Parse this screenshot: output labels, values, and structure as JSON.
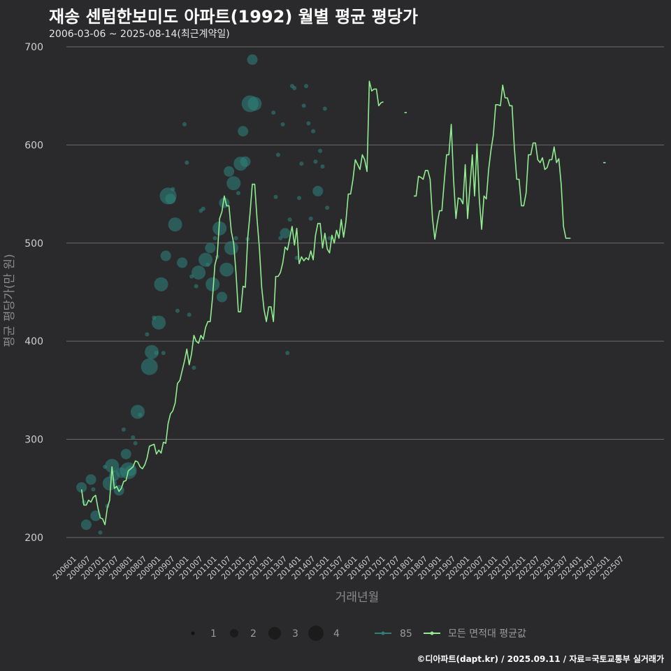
{
  "header": {
    "title": "재송 센텀한보미도 아파트(1992) 월별 평균 평당가",
    "subtitle": "2006-03-06 ~ 2025-08-14(최근계약일)"
  },
  "footer": {
    "credit": "©디아파트(dapt.kr) / 2025.09.11 / 자료=국토교통부 실거래가"
  },
  "colors": {
    "background": "#2a2a2c",
    "grid": "#6a6a6a",
    "line": "#90ee90",
    "points": "#2f7f78"
  },
  "legend": {
    "size_labels": [
      "1",
      "2",
      "3",
      "4"
    ],
    "series_85": "85",
    "series_all": "모든 면적대 평균값"
  },
  "chart_data": {
    "type": "line",
    "title": "재송 센텀한보미도 아파트(1992) 월별 평균 평당가",
    "xlabel": "거래년월",
    "ylabel": "평균 평당가(만 원)",
    "ylim": [
      185,
      705
    ],
    "yticks": [
      200,
      300,
      400,
      500,
      600,
      700
    ],
    "x_start": "200601",
    "x_end": "202512",
    "xtick_labels": [
      "200601",
      "200607",
      "200701",
      "200707",
      "200801",
      "200807",
      "200901",
      "200907",
      "201001",
      "201007",
      "201101",
      "201107",
      "201201",
      "201207",
      "201301",
      "201307",
      "201401",
      "201407",
      "201501",
      "201507",
      "201601",
      "201607",
      "201701",
      "201707",
      "201801",
      "201807",
      "201901",
      "201907",
      "202001",
      "202007",
      "202101",
      "202107",
      "202201",
      "202207",
      "202301",
      "202307",
      "202401",
      "202407",
      "202501",
      "202507"
    ],
    "series_all_avg": [
      [
        "200603",
        249
      ],
      [
        "200604",
        233
      ],
      [
        "200605",
        233
      ],
      [
        "200606",
        238
      ],
      [
        "200607",
        236
      ],
      [
        "200608",
        241
      ],
      [
        "200609",
        243
      ],
      [
        "200610",
        230
      ],
      [
        "200611",
        220
      ],
      [
        "200612",
        219
      ],
      [
        "200701",
        213
      ],
      [
        "200702",
        230
      ],
      [
        "200703",
        238
      ],
      [
        "200704",
        272
      ],
      [
        "200705",
        250
      ],
      [
        "200706",
        252
      ],
      [
        "200707",
        247
      ],
      [
        "200708",
        250
      ],
      [
        "200709",
        257
      ],
      [
        "200710",
        258
      ],
      [
        "200711",
        268
      ],
      [
        "200712",
        270
      ],
      [
        "200801",
        272
      ],
      [
        "200802",
        278
      ],
      [
        "200803",
        277
      ],
      [
        "200804",
        272
      ],
      [
        "200805",
        270
      ],
      [
        "200806",
        274
      ],
      [
        "200807",
        281
      ],
      [
        "200808",
        293
      ],
      [
        "200809",
        294
      ],
      [
        "200810",
        295
      ],
      [
        "200811",
        285
      ],
      [
        "200812",
        289
      ],
      [
        "200901",
        286
      ],
      [
        "200902",
        297
      ],
      [
        "200903",
        296
      ],
      [
        "200904",
        316
      ],
      [
        "200905",
        326
      ],
      [
        "200906",
        329
      ],
      [
        "200907",
        337
      ],
      [
        "200908",
        357
      ],
      [
        "200909",
        360
      ],
      [
        "200910",
        370
      ],
      [
        "200911",
        380
      ],
      [
        "200912",
        392
      ],
      [
        "201001",
        376
      ],
      [
        "201002",
        387
      ],
      [
        "201003",
        406
      ],
      [
        "201004",
        400
      ],
      [
        "201005",
        398
      ],
      [
        "201006",
        406
      ],
      [
        "201007",
        402
      ],
      [
        "201008",
        414
      ],
      [
        "201009",
        420
      ],
      [
        "201010",
        420
      ],
      [
        "201011",
        445
      ],
      [
        "201012",
        478
      ],
      [
        "201101",
        487
      ],
      [
        "201102",
        525
      ],
      [
        "201103",
        532
      ],
      [
        "201104",
        548
      ],
      [
        "201105",
        538
      ],
      [
        "201106",
        538
      ],
      [
        "201107",
        512
      ],
      [
        "201108",
        500
      ],
      [
        "201109",
        470
      ],
      [
        "201110",
        430
      ],
      [
        "201111",
        430
      ],
      [
        "201112",
        456
      ],
      [
        "201201",
        455
      ],
      [
        "201202",
        505
      ],
      [
        "201203",
        530
      ],
      [
        "201204",
        560
      ],
      [
        "201205",
        560
      ],
      [
        "201206",
        525
      ],
      [
        "201207",
        495
      ],
      [
        "201208",
        455
      ],
      [
        "201209",
        432
      ],
      [
        "201210",
        420
      ],
      [
        "201211",
        435
      ],
      [
        "201212",
        435
      ],
      [
        "201301",
        420
      ],
      [
        "201302",
        466
      ],
      [
        "201303",
        466
      ],
      [
        "201304",
        470
      ],
      [
        "201305",
        480
      ],
      [
        "201306",
        496
      ],
      [
        "201307",
        493
      ],
      [
        "201308",
        505
      ],
      [
        "201309",
        517
      ],
      [
        "201310",
        498
      ],
      [
        "201311",
        515
      ],
      [
        "201312",
        479
      ],
      [
        "201401",
        486
      ],
      [
        "201402",
        482
      ],
      [
        "201403",
        485
      ],
      [
        "201404",
        483
      ],
      [
        "201405",
        492
      ],
      [
        "201406",
        483
      ],
      [
        "201407",
        508
      ],
      [
        "201408",
        520
      ],
      [
        "201409",
        520
      ],
      [
        "201410",
        495
      ],
      [
        "201411",
        510
      ],
      [
        "201412",
        494
      ],
      [
        "201501",
        490
      ],
      [
        "201502",
        508
      ],
      [
        "201503",
        500
      ],
      [
        "201504",
        513
      ],
      [
        "201505",
        505
      ],
      [
        "201506",
        524
      ],
      [
        "201507",
        506
      ],
      [
        "201508",
        522
      ],
      [
        "201509",
        550
      ],
      [
        "201510",
        550
      ],
      [
        "201511",
        565
      ],
      [
        "201512",
        585
      ],
      [
        "201601",
        580
      ],
      [
        "201602",
        575
      ],
      [
        "201603",
        590
      ],
      [
        "201604",
        585
      ],
      [
        "201605",
        573
      ],
      [
        "201606",
        665
      ],
      [
        "201607",
        655
      ],
      [
        "201608",
        657
      ],
      [
        "201609",
        657
      ],
      [
        "201610",
        640
      ],
      [
        "201611",
        643
      ],
      [
        "201612",
        644
      ],
      [
        "201709",
        633
      ],
      [
        "201710",
        633
      ],
      [
        "201801",
        548
      ],
      [
        "201802",
        548
      ],
      [
        "201803",
        568
      ],
      [
        "201804",
        567
      ],
      [
        "201805",
        565
      ],
      [
        "201806",
        574
      ],
      [
        "201807",
        574
      ],
      [
        "201808",
        565
      ],
      [
        "201809",
        525
      ],
      [
        "201810",
        504
      ],
      [
        "201811",
        520
      ],
      [
        "201812",
        533
      ],
      [
        "201901",
        533
      ],
      [
        "201902",
        562
      ],
      [
        "201903",
        590
      ],
      [
        "201904",
        590
      ],
      [
        "201905",
        621
      ],
      [
        "201906",
        565
      ],
      [
        "201907",
        525
      ],
      [
        "201908",
        546
      ],
      [
        "201909",
        545
      ],
      [
        "201910",
        540
      ],
      [
        "201911",
        580
      ],
      [
        "201912",
        525
      ],
      [
        "202001",
        557
      ],
      [
        "202002",
        590
      ],
      [
        "202003",
        548
      ],
      [
        "202004",
        601
      ],
      [
        "202005",
        545
      ],
      [
        "202006",
        514
      ],
      [
        "202007",
        548
      ],
      [
        "202008",
        545
      ],
      [
        "202009",
        575
      ],
      [
        "202010",
        595
      ],
      [
        "202011",
        610
      ],
      [
        "202012",
        641
      ],
      [
        "202101",
        641
      ],
      [
        "202102",
        640
      ],
      [
        "202103",
        661
      ],
      [
        "202104",
        648
      ],
      [
        "202105",
        648
      ],
      [
        "202106",
        640
      ],
      [
        "202107",
        640
      ],
      [
        "202108",
        597
      ],
      [
        "202109",
        565
      ],
      [
        "202110",
        565
      ],
      [
        "202111",
        538
      ],
      [
        "202112",
        538
      ],
      [
        "202201",
        551
      ],
      [
        "202202",
        590
      ],
      [
        "202203",
        590
      ],
      [
        "202204",
        602
      ],
      [
        "202205",
        602
      ],
      [
        "202206",
        585
      ],
      [
        "202207",
        582
      ],
      [
        "202208",
        587
      ],
      [
        "202209",
        575
      ],
      [
        "202210",
        577
      ],
      [
        "202211",
        585
      ],
      [
        "202212",
        585
      ],
      [
        "202301",
        598
      ],
      [
        "202302",
        582
      ],
      [
        "202303",
        586
      ],
      [
        "202304",
        560
      ],
      [
        "202305",
        517
      ],
      [
        "202306",
        505
      ],
      [
        "202307",
        505
      ],
      [
        "202308",
        505
      ],
      [
        "202410",
        582
      ],
      [
        "202411",
        582
      ]
    ],
    "series_85_points": [
      [
        "200603",
        251,
        2
      ],
      [
        "200604",
        236,
        1
      ],
      [
        "200605",
        213,
        2
      ],
      [
        "200607",
        259,
        2
      ],
      [
        "200608",
        249,
        1
      ],
      [
        "200609",
        222,
        2
      ],
      [
        "200611",
        205,
        1
      ],
      [
        "200701",
        272,
        1
      ],
      [
        "200702",
        232,
        1
      ],
      [
        "200703",
        255,
        3
      ],
      [
        "200704",
        273,
        3
      ],
      [
        "200705",
        263,
        2
      ],
      [
        "200707",
        248,
        2
      ],
      [
        "200708",
        266,
        2
      ],
      [
        "200709",
        310,
        1
      ],
      [
        "200710",
        285,
        2
      ],
      [
        "200711",
        268,
        4
      ],
      [
        "200712",
        268,
        2
      ],
      [
        "200801",
        302,
        1
      ],
      [
        "200802",
        296,
        1
      ],
      [
        "200803",
        328,
        3
      ],
      [
        "200804",
        325,
        1
      ],
      [
        "200807",
        407,
        1
      ],
      [
        "200808",
        374,
        4
      ],
      [
        "200809",
        389,
        3
      ],
      [
        "200810",
        424,
        1
      ],
      [
        "200811",
        388,
        1
      ],
      [
        "200812",
        419,
        3
      ],
      [
        "200901",
        458,
        3
      ],
      [
        "200902",
        388,
        1
      ],
      [
        "200903",
        487,
        2
      ],
      [
        "200904",
        548,
        4
      ],
      [
        "200905",
        545,
        2
      ],
      [
        "200906",
        555,
        1
      ],
      [
        "200907",
        519,
        3
      ],
      [
        "200908",
        431,
        1
      ],
      [
        "200910",
        480,
        2
      ],
      [
        "200911",
        621,
        1
      ],
      [
        "200912",
        582,
        1
      ],
      [
        "201001",
        427,
        1
      ],
      [
        "201002",
        466,
        1
      ],
      [
        "201003",
        373,
        1
      ],
      [
        "201004",
        456,
        1
      ],
      [
        "201005",
        470,
        3
      ],
      [
        "201006",
        533,
        1
      ],
      [
        "201007",
        535,
        1
      ],
      [
        "201008",
        483,
        3
      ],
      [
        "201009",
        478,
        1
      ],
      [
        "201010",
        495,
        2
      ],
      [
        "201011",
        458,
        3
      ],
      [
        "201012",
        505,
        1
      ],
      [
        "201101",
        486,
        1
      ],
      [
        "201102",
        515,
        3
      ],
      [
        "201103",
        445,
        2
      ],
      [
        "201104",
        541,
        2
      ],
      [
        "201105",
        473,
        3
      ],
      [
        "201106",
        573,
        2
      ],
      [
        "201107",
        495,
        3
      ],
      [
        "201108",
        561,
        3
      ],
      [
        "201109",
        505,
        1
      ],
      [
        "201110",
        551,
        1
      ],
      [
        "201111",
        581,
        3
      ],
      [
        "201112",
        614,
        2
      ],
      [
        "201201",
        583,
        2
      ],
      [
        "201202",
        504,
        1
      ],
      [
        "201203",
        642,
        4
      ],
      [
        "201204",
        687,
        2
      ],
      [
        "201205",
        642,
        3
      ],
      [
        "201301",
        633,
        1
      ],
      [
        "201302",
        547,
        1
      ],
      [
        "201303",
        590,
        1
      ],
      [
        "201304",
        505,
        1
      ],
      [
        "201305",
        621,
        1
      ],
      [
        "201306",
        510,
        2
      ],
      [
        "201307",
        388,
        1
      ],
      [
        "201308",
        524,
        1
      ],
      [
        "201309",
        660,
        1
      ],
      [
        "201310",
        658,
        1
      ],
      [
        "201311",
        485,
        1
      ],
      [
        "201312",
        546,
        1
      ],
      [
        "201401",
        581,
        1
      ],
      [
        "201402",
        640,
        1
      ],
      [
        "201403",
        660,
        1
      ],
      [
        "201404",
        622,
        1
      ],
      [
        "201405",
        525,
        1
      ],
      [
        "201406",
        614,
        1
      ],
      [
        "201407",
        583,
        1
      ],
      [
        "201408",
        553,
        2
      ],
      [
        "201409",
        594,
        1
      ],
      [
        "201410",
        578,
        1
      ],
      [
        "201411",
        637,
        1
      ],
      [
        "201412",
        536,
        1
      ],
      [
        "201501",
        505,
        1
      ]
    ],
    "legend_position": "bottom"
  }
}
